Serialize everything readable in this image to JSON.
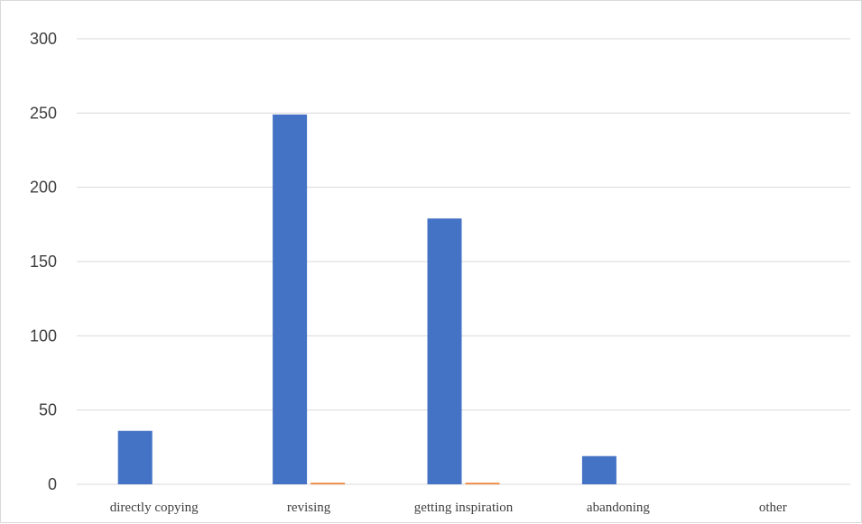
{
  "chart_data": {
    "type": "bar",
    "title": "",
    "xlabel": "",
    "ylabel": "",
    "categories": [
      "directly copying",
      "revising",
      "getting inspiration",
      "abandoning",
      "other"
    ],
    "series": [
      {
        "values": [
          36,
          249,
          179,
          19,
          0
        ],
        "color": "#4472c4"
      },
      {
        "values": [
          0,
          1,
          1,
          0,
          0
        ],
        "color": "#ed7d31"
      }
    ],
    "ylim": [
      0,
      300
    ],
    "yticks": [
      0,
      50,
      100,
      150,
      200,
      250,
      300
    ],
    "grid": true,
    "legend": "none"
  }
}
